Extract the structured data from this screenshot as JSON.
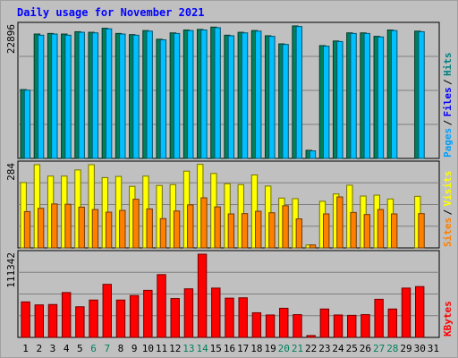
{
  "chart_data": {
    "type": "bar",
    "title": "Daily usage for November 2021",
    "categories": [
      "1",
      "2",
      "3",
      "4",
      "5",
      "6",
      "7",
      "8",
      "9",
      "10",
      "11",
      "12",
      "13",
      "14",
      "15",
      "16",
      "17",
      "18",
      "19",
      "20",
      "21",
      "22",
      "23",
      "24",
      "25",
      "26",
      "27",
      "28",
      "29",
      "30",
      "31"
    ],
    "weekend_days": [
      "6",
      "7",
      "13",
      "14",
      "20",
      "21",
      "27",
      "28"
    ],
    "panels": [
      {
        "name": "hits-files-pages",
        "max_label": "22896",
        "ymax": 22896,
        "legend": [
          {
            "text": "Pages",
            "color": "#00a0ff"
          },
          {
            "text": "Files",
            "color": "#0000ff"
          },
          {
            "text": "Hits",
            "color": "#008080"
          }
        ],
        "series": [
          {
            "name": "Hits",
            "color": "#00805c",
            "values": [
              11900,
              21500,
              21600,
              21500,
              21900,
              21800,
              22500,
              21600,
              21400,
              22100,
              20600,
              21700,
              22200,
              22300,
              22700,
              21300,
              21800,
              22100,
              21200,
              19800,
              22900,
              1400,
              19500,
              20300,
              21700,
              21700,
              21100,
              22200,
              null,
              22000,
              null
            ]
          },
          {
            "name": "Files",
            "color": "#00c0ff",
            "values": [
              11800,
              21300,
              21500,
              21300,
              21800,
              21700,
              22400,
              21500,
              21300,
              22000,
              20500,
              21600,
              22100,
              22200,
              22600,
              21200,
              21700,
              22000,
              21100,
              19700,
              22800,
              1300,
              19400,
              20200,
              21600,
              21600,
              21000,
              22100,
              null,
              21900,
              null
            ]
          }
        ]
      },
      {
        "name": "visits-sites",
        "max_label": "284",
        "ymax": 284,
        "legend": [
          {
            "text": "Sites",
            "color": "#ff8000"
          },
          {
            "text": "Visits",
            "color": "#ffff00"
          }
        ],
        "series": [
          {
            "name": "Visits",
            "color": "#ffff00",
            "values": [
              223,
              284,
              245,
              245,
              266,
              284,
              240,
              244,
              210,
              245,
              213,
              216,
              262,
              285,
              254,
              219,
              216,
              249,
              211,
              170,
              168,
              10,
              159,
              184,
              214,
              177,
              180,
              167,
              null,
              176,
              null
            ]
          },
          {
            "name": "Sites",
            "color": "#ff8000",
            "values": [
              124,
              135,
              150,
              149,
              139,
              131,
              122,
              128,
              166,
              133,
              100,
              126,
              147,
              171,
              140,
              116,
              117,
              125,
              120,
              144,
              99,
              10,
              116,
              174,
              121,
              114,
              131,
              116,
              null,
              117,
              null
            ]
          }
        ]
      },
      {
        "name": "kbytes",
        "max_label": "111342",
        "ymax": 111342,
        "legend": [
          {
            "text": "KBytes",
            "color": "#ff0000"
          }
        ],
        "series": [
          {
            "name": "KBytes",
            "color": "#ff0000",
            "values": [
              47500,
              43500,
              44000,
              60000,
              41000,
              50000,
              71000,
              50000,
              56000,
              63000,
              84000,
              52000,
              65000,
              111342,
              66000,
              52500,
              53000,
              33000,
              30000,
              39000,
              30500,
              2500,
              38000,
              30000,
              29500,
              30500,
              51000,
              38000,
              66000,
              68000,
              null
            ]
          }
        ]
      }
    ]
  }
}
